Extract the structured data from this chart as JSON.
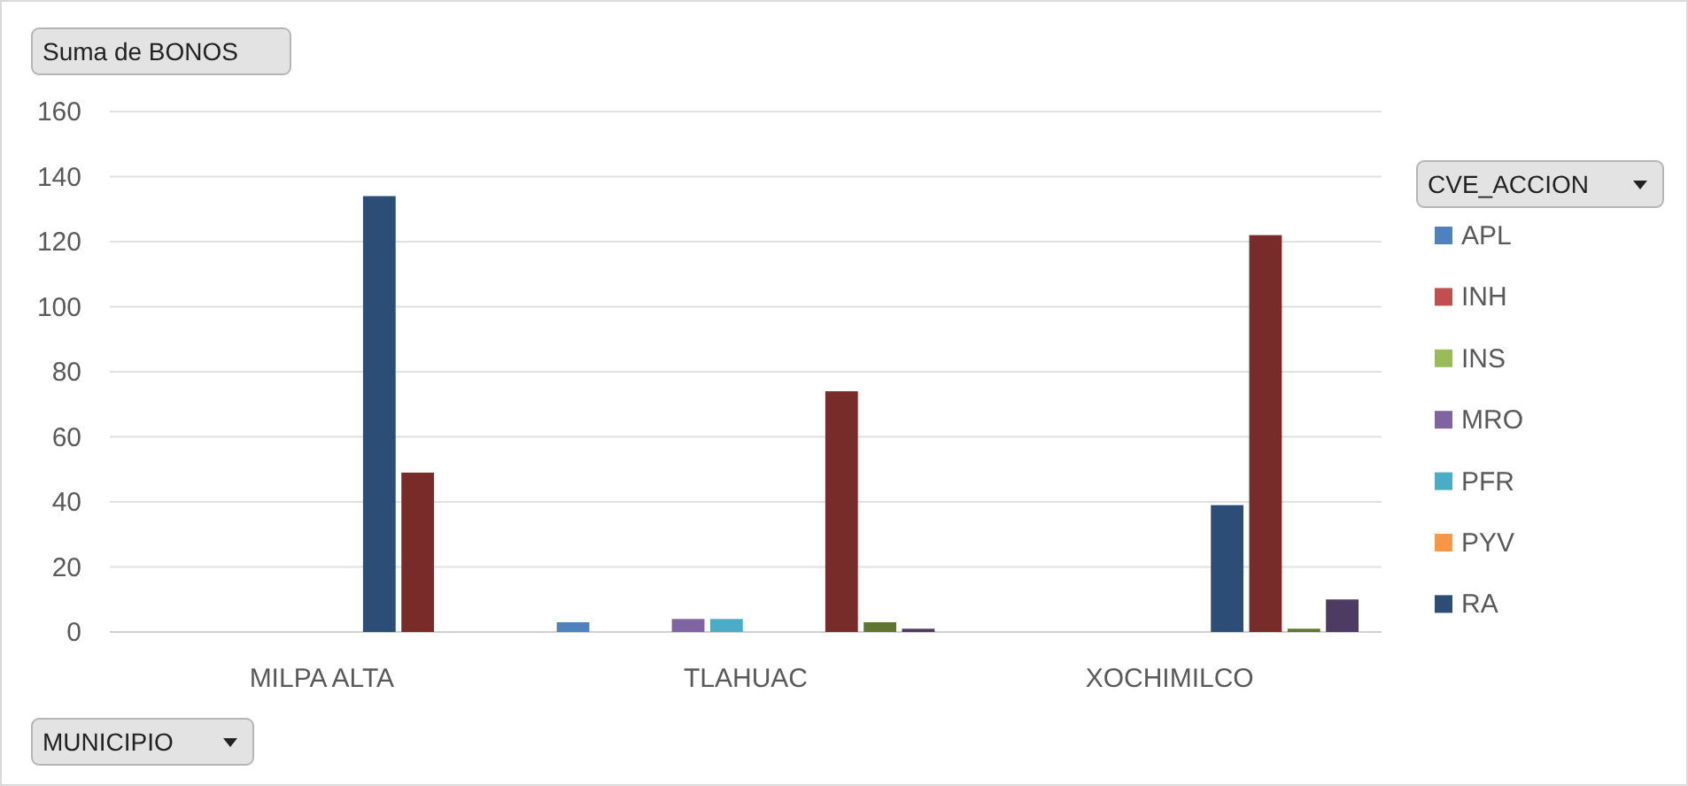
{
  "chart_data": {
    "type": "bar",
    "title": "Suma de BONOS",
    "xlabel": "MUNICIPIO",
    "legend_title": "CVE_ACCION",
    "categories": [
      "MILPA ALTA",
      "TLAHUAC",
      "XOCHIMILCO"
    ],
    "series": [
      {
        "name": "APL",
        "color": "#4f81bd",
        "values": [
          null,
          3,
          null
        ]
      },
      {
        "name": "INH",
        "color": "#c0504d",
        "values": [
          null,
          null,
          null
        ]
      },
      {
        "name": "INS",
        "color": "#9bbb59",
        "values": [
          null,
          null,
          null
        ]
      },
      {
        "name": "MRO",
        "color": "#8064a2",
        "values": [
          null,
          4,
          null
        ]
      },
      {
        "name": "PFR",
        "color": "#4bacc6",
        "values": [
          null,
          4,
          null
        ]
      },
      {
        "name": "PYV",
        "color": "#f79646",
        "values": [
          null,
          null,
          null
        ]
      },
      {
        "name": "RA",
        "color": "#2c4d75",
        "values": [
          134,
          null,
          39
        ]
      },
      {
        "color": "#772c2a",
        "values": [
          49,
          74,
          122
        ]
      },
      {
        "color": "#5f7530",
        "values": [
          null,
          3,
          1
        ]
      },
      {
        "color": "#4d3b62",
        "values": [
          null,
          1,
          10
        ]
      }
    ],
    "ylim": [
      0,
      160
    ],
    "yticks": [
      0,
      20,
      40,
      60,
      80,
      100,
      120,
      140,
      160
    ],
    "grid": "y",
    "legend": "right"
  }
}
